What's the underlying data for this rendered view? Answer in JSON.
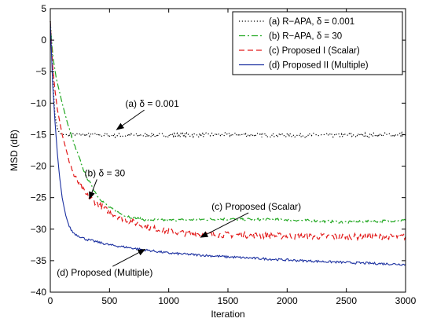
{
  "chart_data": {
    "type": "line",
    "title": "",
    "xlabel": "Iteration",
    "ylabel": "MSD (dB)",
    "xlim": [
      0,
      3000
    ],
    "ylim": [
      -40,
      5
    ],
    "xticks": [
      0,
      500,
      1000,
      1500,
      2000,
      2500,
      3000
    ],
    "yticks": [
      5,
      0,
      -5,
      -10,
      -15,
      -20,
      -25,
      -30,
      -35,
      -40
    ],
    "grid": false,
    "legend_position": "top-right",
    "series": [
      {
        "name": "(a) R−APA, δ = 0.001",
        "color": "#000000",
        "style": "dotted",
        "noise": 0.35,
        "x": [
          0,
          10,
          20,
          30,
          40,
          60,
          80,
          100,
          150,
          200,
          300,
          500,
          1000,
          1500,
          2000,
          2500,
          3000
        ],
        "y": [
          3,
          0,
          -5,
          -9,
          -12,
          -14,
          -14.8,
          -15,
          -15,
          -15,
          -15,
          -15.1,
          -15.1,
          -15.0,
          -15.1,
          -15.1,
          -15.0
        ]
      },
      {
        "name": "(b) R−APA, δ = 30",
        "color": "#22a822",
        "style": "dashdot",
        "noise": 0.2,
        "x": [
          0,
          10,
          25,
          50,
          100,
          150,
          200,
          300,
          400,
          500,
          600,
          700,
          800,
          1000,
          1200,
          1500,
          2000,
          2500,
          3000
        ],
        "y": [
          3,
          0,
          -3,
          -6,
          -10,
          -13.5,
          -16.5,
          -21.5,
          -24.8,
          -26.6,
          -27.6,
          -28.2,
          -28.5,
          -28.6,
          -28.5,
          -28.4,
          -28.5,
          -28.9,
          -28.6
        ]
      },
      {
        "name": "(c) Proposed I (Scalar)",
        "color": "#e21a1a",
        "style": "dashed",
        "noise": 0.5,
        "x": [
          0,
          10,
          20,
          40,
          60,
          100,
          150,
          200,
          300,
          400,
          500,
          600,
          800,
          1000,
          1200,
          1500,
          2000,
          2500,
          3000
        ],
        "y": [
          3,
          -1,
          -4,
          -8,
          -11,
          -15,
          -18.5,
          -21.5,
          -24.5,
          -26,
          -27.3,
          -28.2,
          -29.6,
          -30.4,
          -30.7,
          -30.9,
          -31.1,
          -31.2,
          -31.2
        ]
      },
      {
        "name": "(d) Proposed II (Multiple)",
        "color": "#1a2fa0",
        "style": "solid",
        "noise": 0.18,
        "x": [
          0,
          10,
          20,
          40,
          60,
          80,
          100,
          130,
          160,
          190,
          220,
          300,
          500,
          800,
          1000,
          1500,
          2000,
          2500,
          3000
        ],
        "y": [
          3,
          -2,
          -7,
          -13,
          -18,
          -22,
          -25,
          -27.8,
          -29.6,
          -30.5,
          -30.9,
          -31.6,
          -32.5,
          -33.3,
          -33.8,
          -34.4,
          -34.9,
          -35.3,
          -35.6
        ]
      }
    ],
    "annotations": [
      {
        "text": "(a) δ = 0.001",
        "text_at": [
          860,
          -10.6
        ],
        "arrow_to": [
          560,
          -14.2
        ],
        "anchor": "middle"
      },
      {
        "text": "(b) δ = 30",
        "text_at": [
          460,
          -21.6
        ],
        "arrow_to": [
          330,
          -25.2
        ],
        "anchor": "middle"
      },
      {
        "text": "(c) Proposed (Scalar)",
        "text_at": [
          1740,
          -26.9
        ],
        "arrow_to": [
          1270,
          -31.3
        ],
        "anchor": "middle"
      },
      {
        "text": "(d) Proposed (Multiple)",
        "text_at": [
          460,
          -37.4
        ],
        "arrow_to": [
          800,
          -33.2
        ],
        "anchor": "middle"
      }
    ]
  }
}
